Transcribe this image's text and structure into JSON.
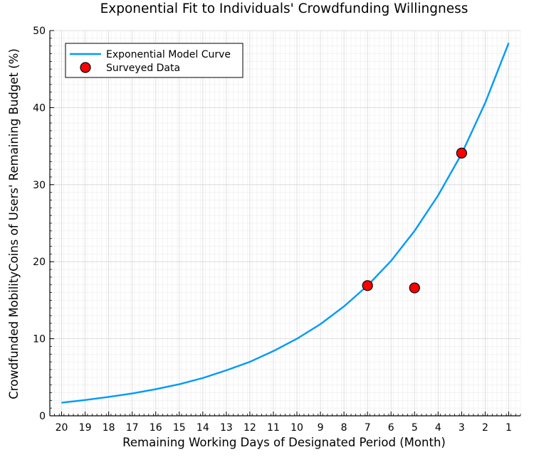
{
  "chart_data": {
    "type": "line",
    "title": "Exponential Fit to Individuals' Crowdfunding Willingness",
    "xlabel": "Remaining Working Days of Designated Period (Month)",
    "ylabel": "Crowdfunded MobilityCoins of Users' Remaining Budget (%)",
    "x_reversed": true,
    "xlim": [
      20.5,
      0.5
    ],
    "ylim": [
      0,
      50
    ],
    "x_ticks": [
      20,
      19,
      18,
      17,
      16,
      15,
      14,
      13,
      12,
      11,
      10,
      9,
      8,
      7,
      6,
      5,
      4,
      3,
      2,
      1
    ],
    "y_ticks": [
      0,
      10,
      20,
      30,
      40,
      50
    ],
    "grid": true,
    "legend_position": "top-left",
    "series": [
      {
        "name": "Exponential Model Curve",
        "kind": "line",
        "color": "#009af9",
        "x": [
          20,
          19,
          18,
          17,
          16,
          15,
          14,
          13,
          12,
          11,
          10,
          9,
          8,
          7,
          6,
          5,
          4,
          3,
          2,
          1
        ],
        "y": [
          1.7,
          2.05,
          2.45,
          2.9,
          3.45,
          4.1,
          4.9,
          5.9,
          7.0,
          8.4,
          10.0,
          11.9,
          14.2,
          16.9,
          20.1,
          24.0,
          28.6,
          34.0,
          40.6,
          48.4
        ]
      },
      {
        "name": "Surveyed Data",
        "kind": "scatter",
        "color": "#ff0000",
        "x": [
          7,
          5,
          3
        ],
        "y": [
          16.9,
          16.6,
          34.1
        ]
      }
    ]
  }
}
